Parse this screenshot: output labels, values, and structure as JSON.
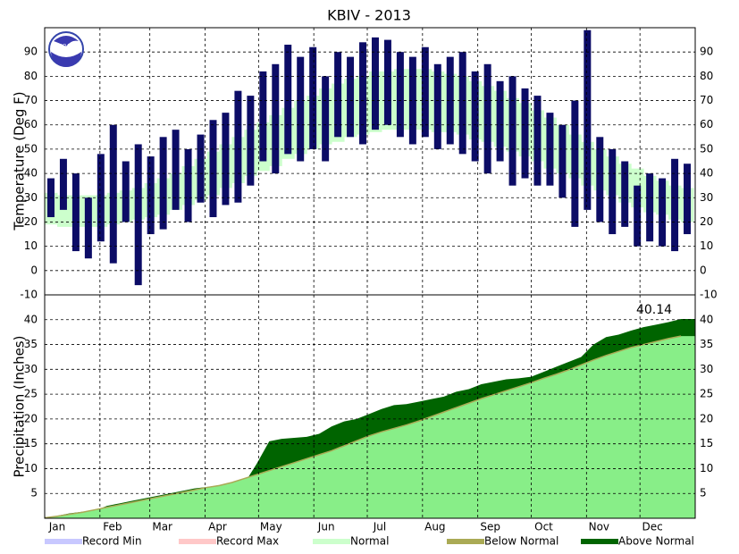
{
  "logo_text": "NOAA",
  "legend": [
    {
      "name": "Record Min",
      "color": "#c8c8ff"
    },
    {
      "name": "Record Max",
      "color": "#ffc8c8"
    },
    {
      "name": "Normal",
      "color": "#ccffcc"
    },
    {
      "name": "Below Normal",
      "color": "#aaaa55"
    },
    {
      "name": "Above Normal",
      "color": "#006400"
    }
  ],
  "chart_data": [
    {
      "type": "range-bar",
      "title": "KBIV - 2013",
      "y_label": "Temperature (Deg F)",
      "xlim": [
        1,
        366
      ],
      "ylim": [
        -10,
        100
      ],
      "yticks": [
        -10,
        0,
        10,
        20,
        30,
        40,
        50,
        60,
        70,
        80,
        90
      ],
      "grid": true,
      "xticks": [
        {
          "value": 1,
          "label": "Jan"
        },
        {
          "value": 32,
          "label": "Feb"
        },
        {
          "value": 60,
          "label": "Mar"
        },
        {
          "value": 91,
          "label": "Apr"
        },
        {
          "value": 121,
          "label": "May"
        },
        {
          "value": 152,
          "label": "Jun"
        },
        {
          "value": 182,
          "label": "Jul"
        },
        {
          "value": 213,
          "label": "Aug"
        },
        {
          "value": 244,
          "label": "Sep"
        },
        {
          "value": 274,
          "label": "Oct"
        },
        {
          "value": 305,
          "label": "Nov"
        },
        {
          "value": 335,
          "label": "Dec"
        }
      ],
      "x": [
        1,
        8,
        15,
        22,
        29,
        36,
        43,
        50,
        57,
        64,
        71,
        78,
        85,
        92,
        99,
        106,
        113,
        120,
        127,
        134,
        141,
        148,
        155,
        162,
        169,
        176,
        183,
        190,
        197,
        204,
        211,
        218,
        225,
        232,
        239,
        246,
        253,
        260,
        267,
        274,
        281,
        288,
        295,
        302,
        309,
        316,
        323,
        330,
        337,
        344,
        351,
        358
      ],
      "normal": {
        "color": "#ccffcc",
        "low": [
          19,
          18,
          18,
          18,
          18,
          19,
          20,
          21,
          22,
          23,
          25,
          27,
          29,
          31,
          34,
          36,
          39,
          41,
          43,
          46,
          48,
          50,
          52,
          53,
          55,
          56,
          57,
          58,
          58,
          58,
          58,
          57,
          57,
          56,
          54,
          53,
          51,
          49,
          47,
          45,
          42,
          40,
          38,
          35,
          33,
          31,
          28,
          26,
          24,
          23,
          21,
          20
        ],
        "high": [
          32,
          31,
          31,
          31,
          31,
          32,
          33,
          34,
          36,
          38,
          40,
          43,
          46,
          49,
          52,
          55,
          58,
          61,
          64,
          67,
          70,
          72,
          75,
          77,
          79,
          80,
          82,
          82,
          83,
          83,
          83,
          82,
          81,
          80,
          78,
          76,
          74,
          71,
          69,
          66,
          63,
          60,
          56,
          53,
          50,
          47,
          44,
          42,
          39,
          37,
          35,
          34
        ]
      },
      "observed": {
        "color": "#0c0c66",
        "low": [
          22,
          25,
          8,
          5,
          12,
          3,
          20,
          -6,
          15,
          17,
          25,
          20,
          28,
          22,
          27,
          28,
          35,
          45,
          40,
          48,
          45,
          50,
          45,
          55,
          55,
          52,
          58,
          60,
          55,
          52,
          55,
          50,
          52,
          48,
          45,
          40,
          45,
          35,
          38,
          35,
          35,
          30,
          18,
          25,
          20,
          15,
          18,
          10,
          12,
          10,
          8,
          15
        ],
        "high": [
          38,
          46,
          40,
          30,
          48,
          60,
          45,
          52,
          47,
          55,
          58,
          50,
          56,
          62,
          65,
          74,
          72,
          82,
          85,
          93,
          88,
          92,
          80,
          90,
          88,
          94,
          96,
          95,
          90,
          88,
          92,
          85,
          88,
          90,
          82,
          85,
          78,
          80,
          75,
          72,
          65,
          60,
          70,
          99,
          55,
          50,
          45,
          35,
          40,
          38,
          46,
          44
        ]
      }
    },
    {
      "type": "area",
      "y_label": "Precipitation (Inches)",
      "xlim": [
        1,
        366
      ],
      "ylim": [
        0,
        45
      ],
      "yticks": [
        5,
        10,
        15,
        20,
        25,
        30,
        35,
        40
      ],
      "grid": true,
      "xticks": [
        {
          "value": 1,
          "label": "Jan"
        },
        {
          "value": 32,
          "label": "Feb"
        },
        {
          "value": 60,
          "label": "Mar"
        },
        {
          "value": 91,
          "label": "Apr"
        },
        {
          "value": 121,
          "label": "May"
        },
        {
          "value": 152,
          "label": "Jun"
        },
        {
          "value": 182,
          "label": "Jul"
        },
        {
          "value": 213,
          "label": "Aug"
        },
        {
          "value": 244,
          "label": "Sep"
        },
        {
          "value": 274,
          "label": "Oct"
        },
        {
          "value": 305,
          "label": "Nov"
        },
        {
          "value": 335,
          "label": "Dec"
        }
      ],
      "x": [
        1,
        8,
        15,
        22,
        29,
        36,
        43,
        50,
        57,
        64,
        71,
        78,
        85,
        92,
        99,
        106,
        113,
        120,
        127,
        134,
        141,
        148,
        155,
        162,
        169,
        176,
        183,
        190,
        197,
        204,
        211,
        218,
        225,
        232,
        239,
        246,
        253,
        260,
        267,
        274,
        281,
        288,
        295,
        302,
        309,
        316,
        323,
        330,
        337,
        344,
        351,
        358
      ],
      "observed": {
        "color": "#006400",
        "values": [
          0.1,
          0.5,
          1.0,
          1.3,
          1.5,
          2.5,
          3.0,
          3.5,
          4.0,
          4.5,
          5.0,
          5.5,
          6.0,
          6.3,
          6.6,
          6.8,
          7.0,
          11.0,
          15.5,
          16.0,
          16.2,
          16.4,
          17.0,
          18.5,
          19.5,
          20.0,
          21.0,
          22.0,
          22.8,
          23.0,
          23.5,
          24.0,
          24.5,
          25.5,
          26.0,
          27.0,
          27.5,
          28.0,
          28.2,
          28.5,
          29.5,
          30.5,
          31.5,
          32.5,
          35.0,
          36.5,
          37.0,
          37.8,
          38.5,
          39.0,
          39.5,
          40.14
        ]
      },
      "normal": {
        "color": "#88ee88",
        "line_color": "#aaaa55",
        "values": [
          0.1,
          0.4,
          0.8,
          1.2,
          1.7,
          2.2,
          2.7,
          3.2,
          3.7,
          4.2,
          4.7,
          5.2,
          5.7,
          6.2,
          6.6,
          7.2,
          8.0,
          8.8,
          9.6,
          10.4,
          11.2,
          12.0,
          12.8,
          13.6,
          14.6,
          15.6,
          16.6,
          17.4,
          18.1,
          18.8,
          19.6,
          20.5,
          21.4,
          22.3,
          23.2,
          24.1,
          24.9,
          25.7,
          26.5,
          27.3,
          28.2,
          29.0,
          29.9,
          30.9,
          31.9,
          32.8,
          33.6,
          34.4,
          35.0,
          35.6,
          36.2,
          36.7
        ]
      }
    }
  ]
}
